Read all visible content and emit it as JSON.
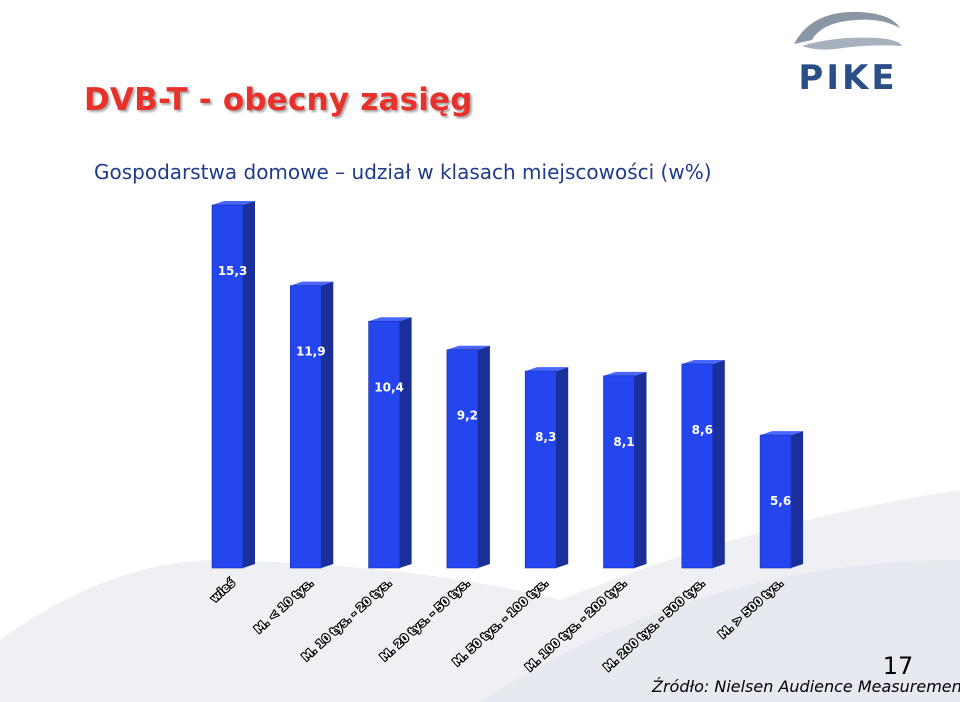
{
  "slide": {
    "title": "DVB-T - obecny zasięg",
    "subtitle": "Gospodarstwa domowe – udział w klasach miejscowości (w%)",
    "page_number": "17",
    "source": "Źródło: Nielsen Audience Measurement"
  },
  "logo": {
    "text": "PIKE",
    "color": "#2a4f86",
    "swoosh_color": "#8a96a6"
  },
  "colors": {
    "title": "#e8312a",
    "subtitle": "#1f3c8c",
    "bar_front": "#2545ee",
    "bar_side": "#1a2f9a",
    "bar_top": "#4a68ff",
    "label": "#ffffff",
    "background_swoosh": "#eef0f4"
  },
  "chart_data": {
    "type": "bar",
    "categories": [
      "wieś",
      "M. < 10 tys.",
      "M. 10 tys. - 20 tys.",
      "M. 20 tys. - 50 tys.",
      "M. 50 tys. - 100 tys.",
      "M. 100 tys. - 200 tys.",
      "M. 200 tys. - 500 tys.",
      "M. > 500 tys."
    ],
    "values": [
      15.3,
      11.9,
      10.4,
      9.2,
      8.3,
      8.1,
      8.6,
      5.6
    ],
    "value_labels": [
      "15,3",
      "11,9",
      "10,4",
      "9,2",
      "8,3",
      "8,1",
      "8,6",
      "5,6"
    ],
    "ylim": [
      0,
      15.3
    ],
    "grid": false,
    "legend": "none",
    "style": "3d-bar"
  }
}
